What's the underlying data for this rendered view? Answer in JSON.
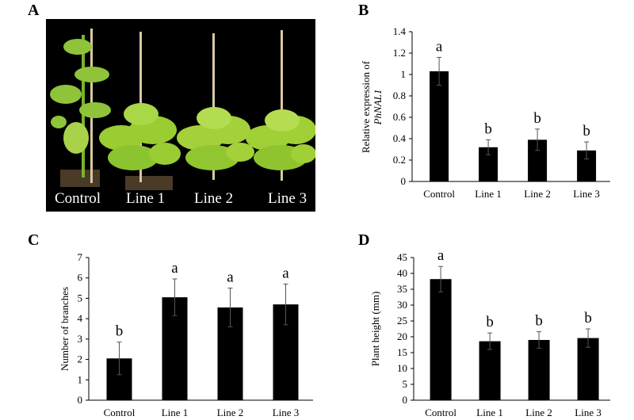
{
  "panel_letters": {
    "a": "A",
    "b": "B",
    "c": "C",
    "d": "D"
  },
  "photo": {
    "labels": [
      "Control",
      "Line 1",
      "Line 2",
      "Line 3"
    ],
    "background": "#000000",
    "foliage_color": "#9acd32"
  },
  "chart_data": [
    {
      "id": "B",
      "type": "bar",
      "categories": [
        "Control",
        "Line 1",
        "Line 2",
        "Line 3"
      ],
      "values": [
        1.03,
        0.32,
        0.39,
        0.29
      ],
      "errors": [
        0.13,
        0.07,
        0.1,
        0.08
      ],
      "significance": [
        "a",
        "b",
        "b",
        "b"
      ],
      "ylabel_line1": "Relative expression of",
      "ylabel_line2": "PhNAL1",
      "ylim": [
        0,
        1.4
      ],
      "yticks": [
        "0",
        "0.2",
        "0.4",
        "0.6",
        "0.8",
        "1",
        "1.2",
        "1.4"
      ],
      "bar_color": "#000000"
    },
    {
      "id": "C",
      "type": "bar",
      "categories": [
        "Control",
        "Line 1",
        "Line 2",
        "Line 3"
      ],
      "values": [
        2.05,
        5.05,
        4.55,
        4.7
      ],
      "errors": [
        0.8,
        0.9,
        0.95,
        1.0
      ],
      "significance": [
        "b",
        "a",
        "a",
        "a"
      ],
      "ylabel_line1": "Number of branches",
      "ylim": [
        0,
        7
      ],
      "yticks": [
        "0",
        "1",
        "2",
        "3",
        "4",
        "5",
        "6",
        "7"
      ],
      "bar_color": "#000000"
    },
    {
      "id": "D",
      "type": "bar",
      "categories": [
        "Control",
        "Line 1",
        "Line 2",
        "Line 3"
      ],
      "values": [
        38.2,
        18.6,
        19.0,
        19.6
      ],
      "errors": [
        4.0,
        2.6,
        2.6,
        2.9
      ],
      "significance": [
        "a",
        "b",
        "b",
        "b"
      ],
      "ylabel_line1": "Plant height (mm)",
      "ylim": [
        0,
        45
      ],
      "yticks": [
        "0",
        "5",
        "10",
        "15",
        "20",
        "25",
        "30",
        "35",
        "40",
        "45"
      ],
      "bar_color": "#000000"
    }
  ]
}
